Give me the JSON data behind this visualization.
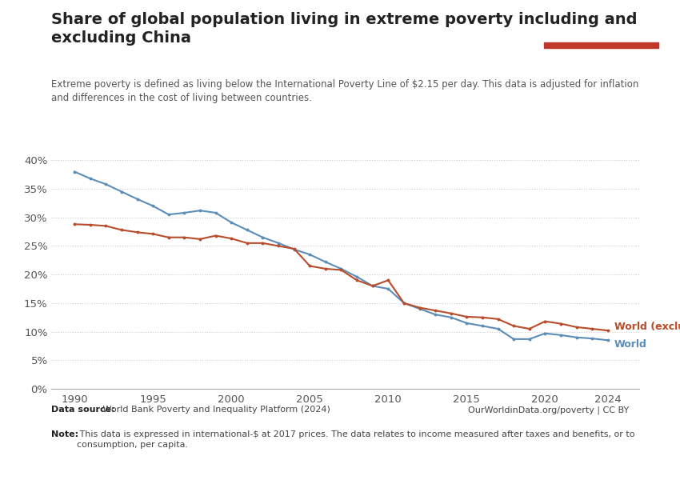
{
  "title": "Share of global population living in extreme poverty including and\nexcluding China",
  "subtitle": "Extreme poverty is defined as living below the International Poverty Line of $2.15 per day. This data is adjusted for inflation\nand differences in the cost of living between countries.",
  "datasource_bold": "Data source:",
  "datasource_rest": " World Bank Poverty and Inequality Platform (2024)",
  "note_bold": "Note:",
  "note_rest": " This data is expressed in international-$ at 2017 prices. The data relates to income measured after taxes and benefits, or to\nconsumption, per capita.",
  "credit": "OurWorldinData.org/poverty | CC BY",
  "world_years": [
    1990,
    1991,
    1992,
    1993,
    1994,
    1995,
    1996,
    1997,
    1998,
    1999,
    2000,
    2001,
    2002,
    2003,
    2004,
    2005,
    2006,
    2007,
    2008,
    2009,
    2010,
    2011,
    2012,
    2013,
    2014,
    2015,
    2016,
    2017,
    2018,
    2019,
    2020,
    2021,
    2022,
    2023,
    2024
  ],
  "world_values": [
    38.0,
    36.8,
    35.8,
    34.5,
    33.2,
    32.0,
    30.5,
    30.8,
    31.2,
    30.8,
    29.1,
    27.8,
    26.5,
    25.5,
    24.4,
    23.5,
    22.2,
    21.0,
    19.6,
    18.0,
    17.5,
    15.0,
    14.0,
    13.0,
    12.5,
    11.5,
    11.0,
    10.5,
    8.7,
    8.7,
    9.7,
    9.4,
    9.0,
    8.8,
    8.5
  ],
  "excl_years": [
    1990,
    1991,
    1992,
    1993,
    1994,
    1995,
    1996,
    1997,
    1998,
    1999,
    2000,
    2001,
    2002,
    2003,
    2004,
    2005,
    2006,
    2007,
    2008,
    2009,
    2010,
    2011,
    2012,
    2013,
    2014,
    2015,
    2016,
    2017,
    2018,
    2019,
    2020,
    2021,
    2022,
    2023,
    2024
  ],
  "excl_values": [
    28.8,
    28.7,
    28.5,
    27.8,
    27.4,
    27.1,
    26.5,
    26.5,
    26.2,
    26.8,
    26.3,
    25.5,
    25.5,
    25.0,
    24.5,
    21.5,
    21.0,
    20.8,
    19.0,
    18.0,
    19.0,
    15.0,
    14.2,
    13.7,
    13.2,
    12.6,
    12.5,
    12.2,
    11.0,
    10.5,
    11.8,
    11.4,
    10.8,
    10.5,
    10.2
  ],
  "world_color": "#5b8db8",
  "excl_color": "#b84c2a",
  "background_color": "#ffffff",
  "grid_color": "#cccccc",
  "owid_box_color": "#1a3a5c",
  "owid_box_accent": "#c0392b",
  "ylim": [
    0.0,
    0.42
  ],
  "yticks": [
    0.0,
    0.05,
    0.1,
    0.15,
    0.2,
    0.25,
    0.3,
    0.35,
    0.4
  ],
  "xlim": [
    1988.5,
    2026
  ],
  "xticks": [
    1990,
    1995,
    2000,
    2005,
    2010,
    2015,
    2020,
    2024
  ],
  "label_excl": "World (excluding China)",
  "label_world": "World"
}
